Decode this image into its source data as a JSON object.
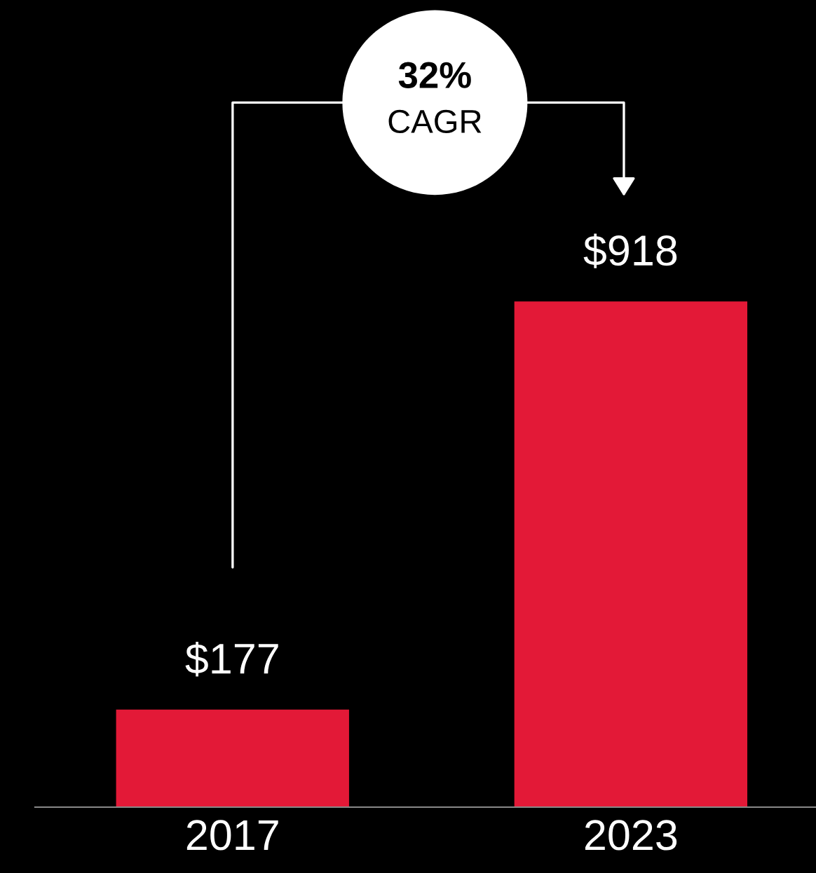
{
  "chart_data": {
    "type": "bar",
    "categories": [
      "2017",
      "2023"
    ],
    "values": [
      177,
      918
    ],
    "color": "#e31937",
    "value_labels": [
      "$177",
      "$918"
    ],
    "annotations": [
      "32%",
      "CAGR"
    ],
    "grid": false,
    "legend": false
  }
}
